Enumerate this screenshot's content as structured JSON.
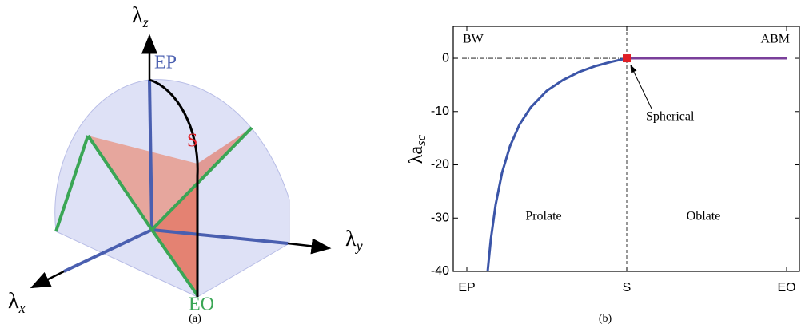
{
  "diagram": {
    "axes": [
      {
        "symbol": "λ",
        "sub": "z"
      },
      {
        "symbol": "λ",
        "sub": "y"
      },
      {
        "symbol": "λ",
        "sub": "x"
      }
    ],
    "points": [
      "EP",
      "S",
      "EO"
    ],
    "caption": "(a)"
  },
  "chart_data": {
    "type": "line",
    "caption": "(b)",
    "y_label": "λa",
    "y_label_sub": "sc",
    "annotations": [
      "BW",
      "ABM",
      "Spherical",
      "Prolate",
      "Oblate"
    ],
    "xlim": [
      -0.085,
      2.08
    ],
    "xticks": [
      {
        "value": 0,
        "label": "EP"
      },
      {
        "value": 1,
        "label": "S"
      },
      {
        "value": 2,
        "label": "EO"
      }
    ],
    "ylim": [
      -40,
      6
    ],
    "yticks": [
      0,
      -10,
      -20,
      -30,
      -40
    ],
    "grid": false,
    "series": [
      {
        "color": "#3b55a8",
        "x": [
          0.13,
          0.15,
          0.18,
          0.22,
          0.27,
          0.33,
          0.4,
          0.5,
          0.6,
          0.7,
          0.8,
          0.9,
          1.0
        ],
        "values": [
          -40,
          -34,
          -27.5,
          -21.5,
          -16.5,
          -12.4,
          -9.2,
          -6.1,
          -4.1,
          -2.6,
          -1.5,
          -0.7,
          0
        ]
      },
      {
        "color": "#7a3f9a",
        "x": [
          1,
          2
        ],
        "values": [
          0,
          0
        ]
      }
    ],
    "marker": {
      "x": 1,
      "y": 0,
      "color": "#e01f26"
    }
  }
}
